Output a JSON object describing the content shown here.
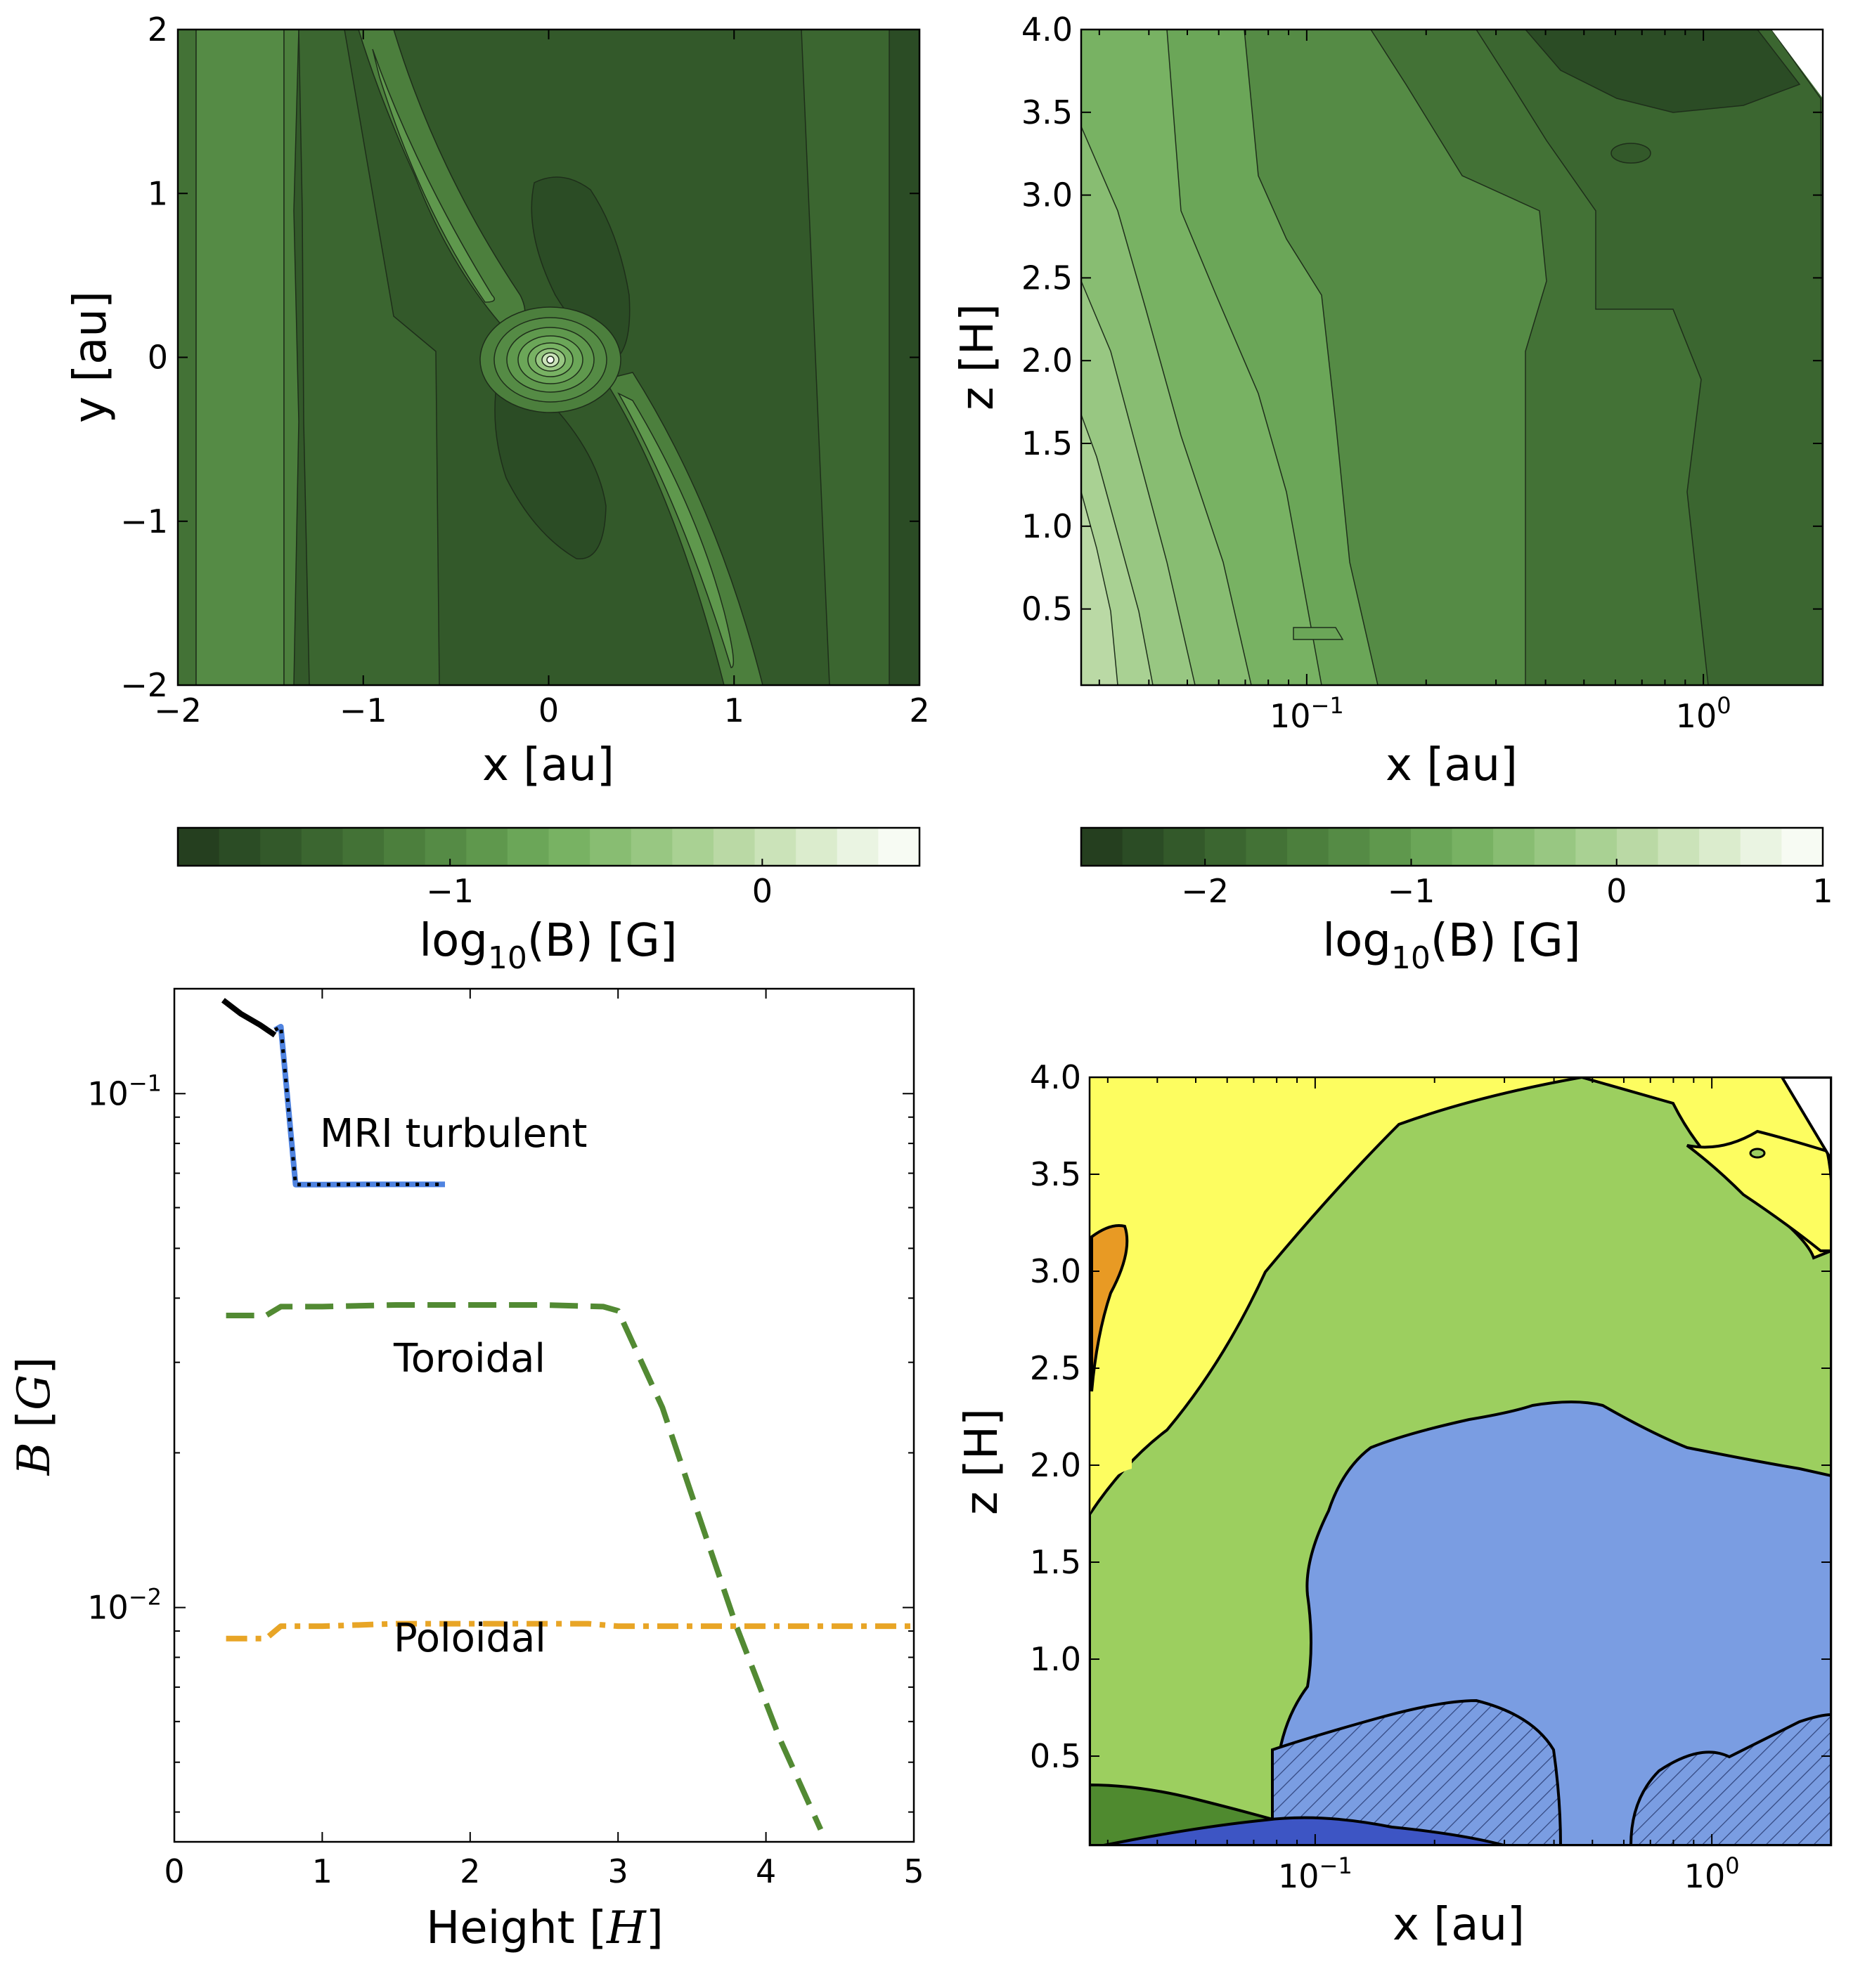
{
  "chart_data": [
    {
      "type": "heatmap",
      "id": "top-left",
      "title": "",
      "xlabel": "x [au]",
      "ylabel": "y [au]",
      "xlim": [
        -2,
        2
      ],
      "ylim": [
        -2,
        2
      ],
      "xticks": [
        "−2",
        "−1",
        "0",
        "1",
        "2"
      ],
      "yticks": [
        "−2",
        "−1",
        "0",
        "1",
        "2"
      ],
      "colorbar": {
        "label_main": "log",
        "label_sub": "10",
        "label_rest": "(B) [G]",
        "ticks": [
          "−1",
          "0"
        ],
        "colors": [
          "#253f1f",
          "#2b4c25",
          "#33592a",
          "#3b6630",
          "#437236",
          "#4c7f3d",
          "#558b45",
          "#5f984d",
          "#6ba658",
          "#78b263",
          "#88bd72",
          "#98c782",
          "#a9d193",
          "#bad9a5",
          "#cbe3b9",
          "#dbeccd",
          "#eaf4e2",
          "#f7fbf3"
        ]
      }
    },
    {
      "type": "heatmap",
      "id": "top-right",
      "title": "",
      "xlabel": "x [au]",
      "ylabel": "z [H]",
      "xscale": "log",
      "ylim": [
        0,
        4.0
      ],
      "xticks_main": [
        "10",
        "10"
      ],
      "xticks_exp": [
        "−1",
        "0"
      ],
      "yticks": [
        "0.5",
        "1.0",
        "1.5",
        "2.0",
        "2.5",
        "3.0",
        "3.5",
        "4.0"
      ],
      "colorbar": {
        "label_main": "log",
        "label_sub": "10",
        "label_rest": "(B) [G]",
        "ticks": [
          "−2",
          "−1",
          "0",
          "1"
        ],
        "colors": [
          "#253f1f",
          "#2b4c25",
          "#33592a",
          "#3b6630",
          "#437236",
          "#4c7f3d",
          "#558b45",
          "#5f984d",
          "#6ba658",
          "#78b263",
          "#88bd72",
          "#98c782",
          "#a9d193",
          "#bad9a5",
          "#cbe3b9",
          "#dbeccd",
          "#eaf4e2",
          "#f7fbf3"
        ]
      }
    },
    {
      "type": "line",
      "id": "bottom-left",
      "xlabel_main": "Height [",
      "xlabel_var": "H",
      "xlabel_end": "]",
      "ylabel_var": "B",
      "ylabel_rest": " [",
      "ylabel_unit": "G",
      "ylabel_end": "]",
      "xlim": [
        0,
        5
      ],
      "ylim_log": [
        0.0035,
        0.16
      ],
      "xticks": [
        "0",
        "1",
        "2",
        "3",
        "4",
        "5"
      ],
      "yticks_main": [
        "10",
        "10"
      ],
      "yticks_exp": [
        "−1",
        "−2"
      ],
      "series": [
        {
          "name": "MRI turbulent",
          "color": "#000000",
          "style": "solid",
          "x": [
            0.33,
            0.45,
            0.58,
            0.68
          ],
          "y": [
            0.152,
            0.143,
            0.136,
            0.13
          ]
        },
        {
          "name": "MRI turbulent",
          "color": "#4f83e0",
          "style": "dotted-overlay",
          "x": [
            0.68,
            0.72,
            0.82,
            1.0,
            1.3,
            1.6,
            1.83
          ],
          "y": [
            0.133,
            0.135,
            0.0665,
            0.0665,
            0.0666,
            0.0666,
            0.0666
          ]
        },
        {
          "name": "Toroidal",
          "color": "#528a33",
          "style": "dashed",
          "x": [
            0.35,
            0.62,
            0.72,
            1.0,
            1.5,
            2.0,
            2.5,
            2.9,
            3.0,
            3.3,
            3.5,
            3.8,
            4.1,
            4.37
          ],
          "y": [
            0.037,
            0.037,
            0.0385,
            0.0385,
            0.0388,
            0.0388,
            0.0388,
            0.0385,
            0.0378,
            0.0245,
            0.0165,
            0.0092,
            0.0055,
            0.0037
          ]
        },
        {
          "name": "Poloidal",
          "color": "#e8a526",
          "style": "dashdot",
          "x": [
            0.35,
            0.62,
            0.72,
            1.0,
            1.5,
            2.0,
            2.5,
            2.8,
            3.0,
            3.5,
            4.0,
            4.5,
            5.0
          ],
          "y": [
            0.0087,
            0.0087,
            0.0092,
            0.0092,
            0.0093,
            0.0093,
            0.0093,
            0.0093,
            0.0092,
            0.0092,
            0.0092,
            0.0092,
            0.0092
          ]
        }
      ],
      "annotations": {
        "mri": "MRI turbulent",
        "toroidal": "Toroidal",
        "poloidal": "Poloidal"
      }
    },
    {
      "type": "heatmap",
      "id": "bottom-right",
      "xlabel": "x [au]",
      "ylabel": "z [H]",
      "xscale": "log",
      "ylim": [
        0,
        4.0
      ],
      "xticks_main": [
        "10",
        "10"
      ],
      "xticks_exp": [
        "−1",
        "0"
      ],
      "yticks": [
        "0.5",
        "1.0",
        "1.5",
        "2.0",
        "2.5",
        "3.0",
        "3.5",
        "4.0"
      ],
      "region_colors": {
        "yellow": "#fdfd60",
        "light_green": "#9ccf5f",
        "blue": "#7a9de2",
        "dark_blue": "#3d55c4",
        "dark_green": "#4f8a2f",
        "orange": "#e89a24"
      }
    }
  ]
}
